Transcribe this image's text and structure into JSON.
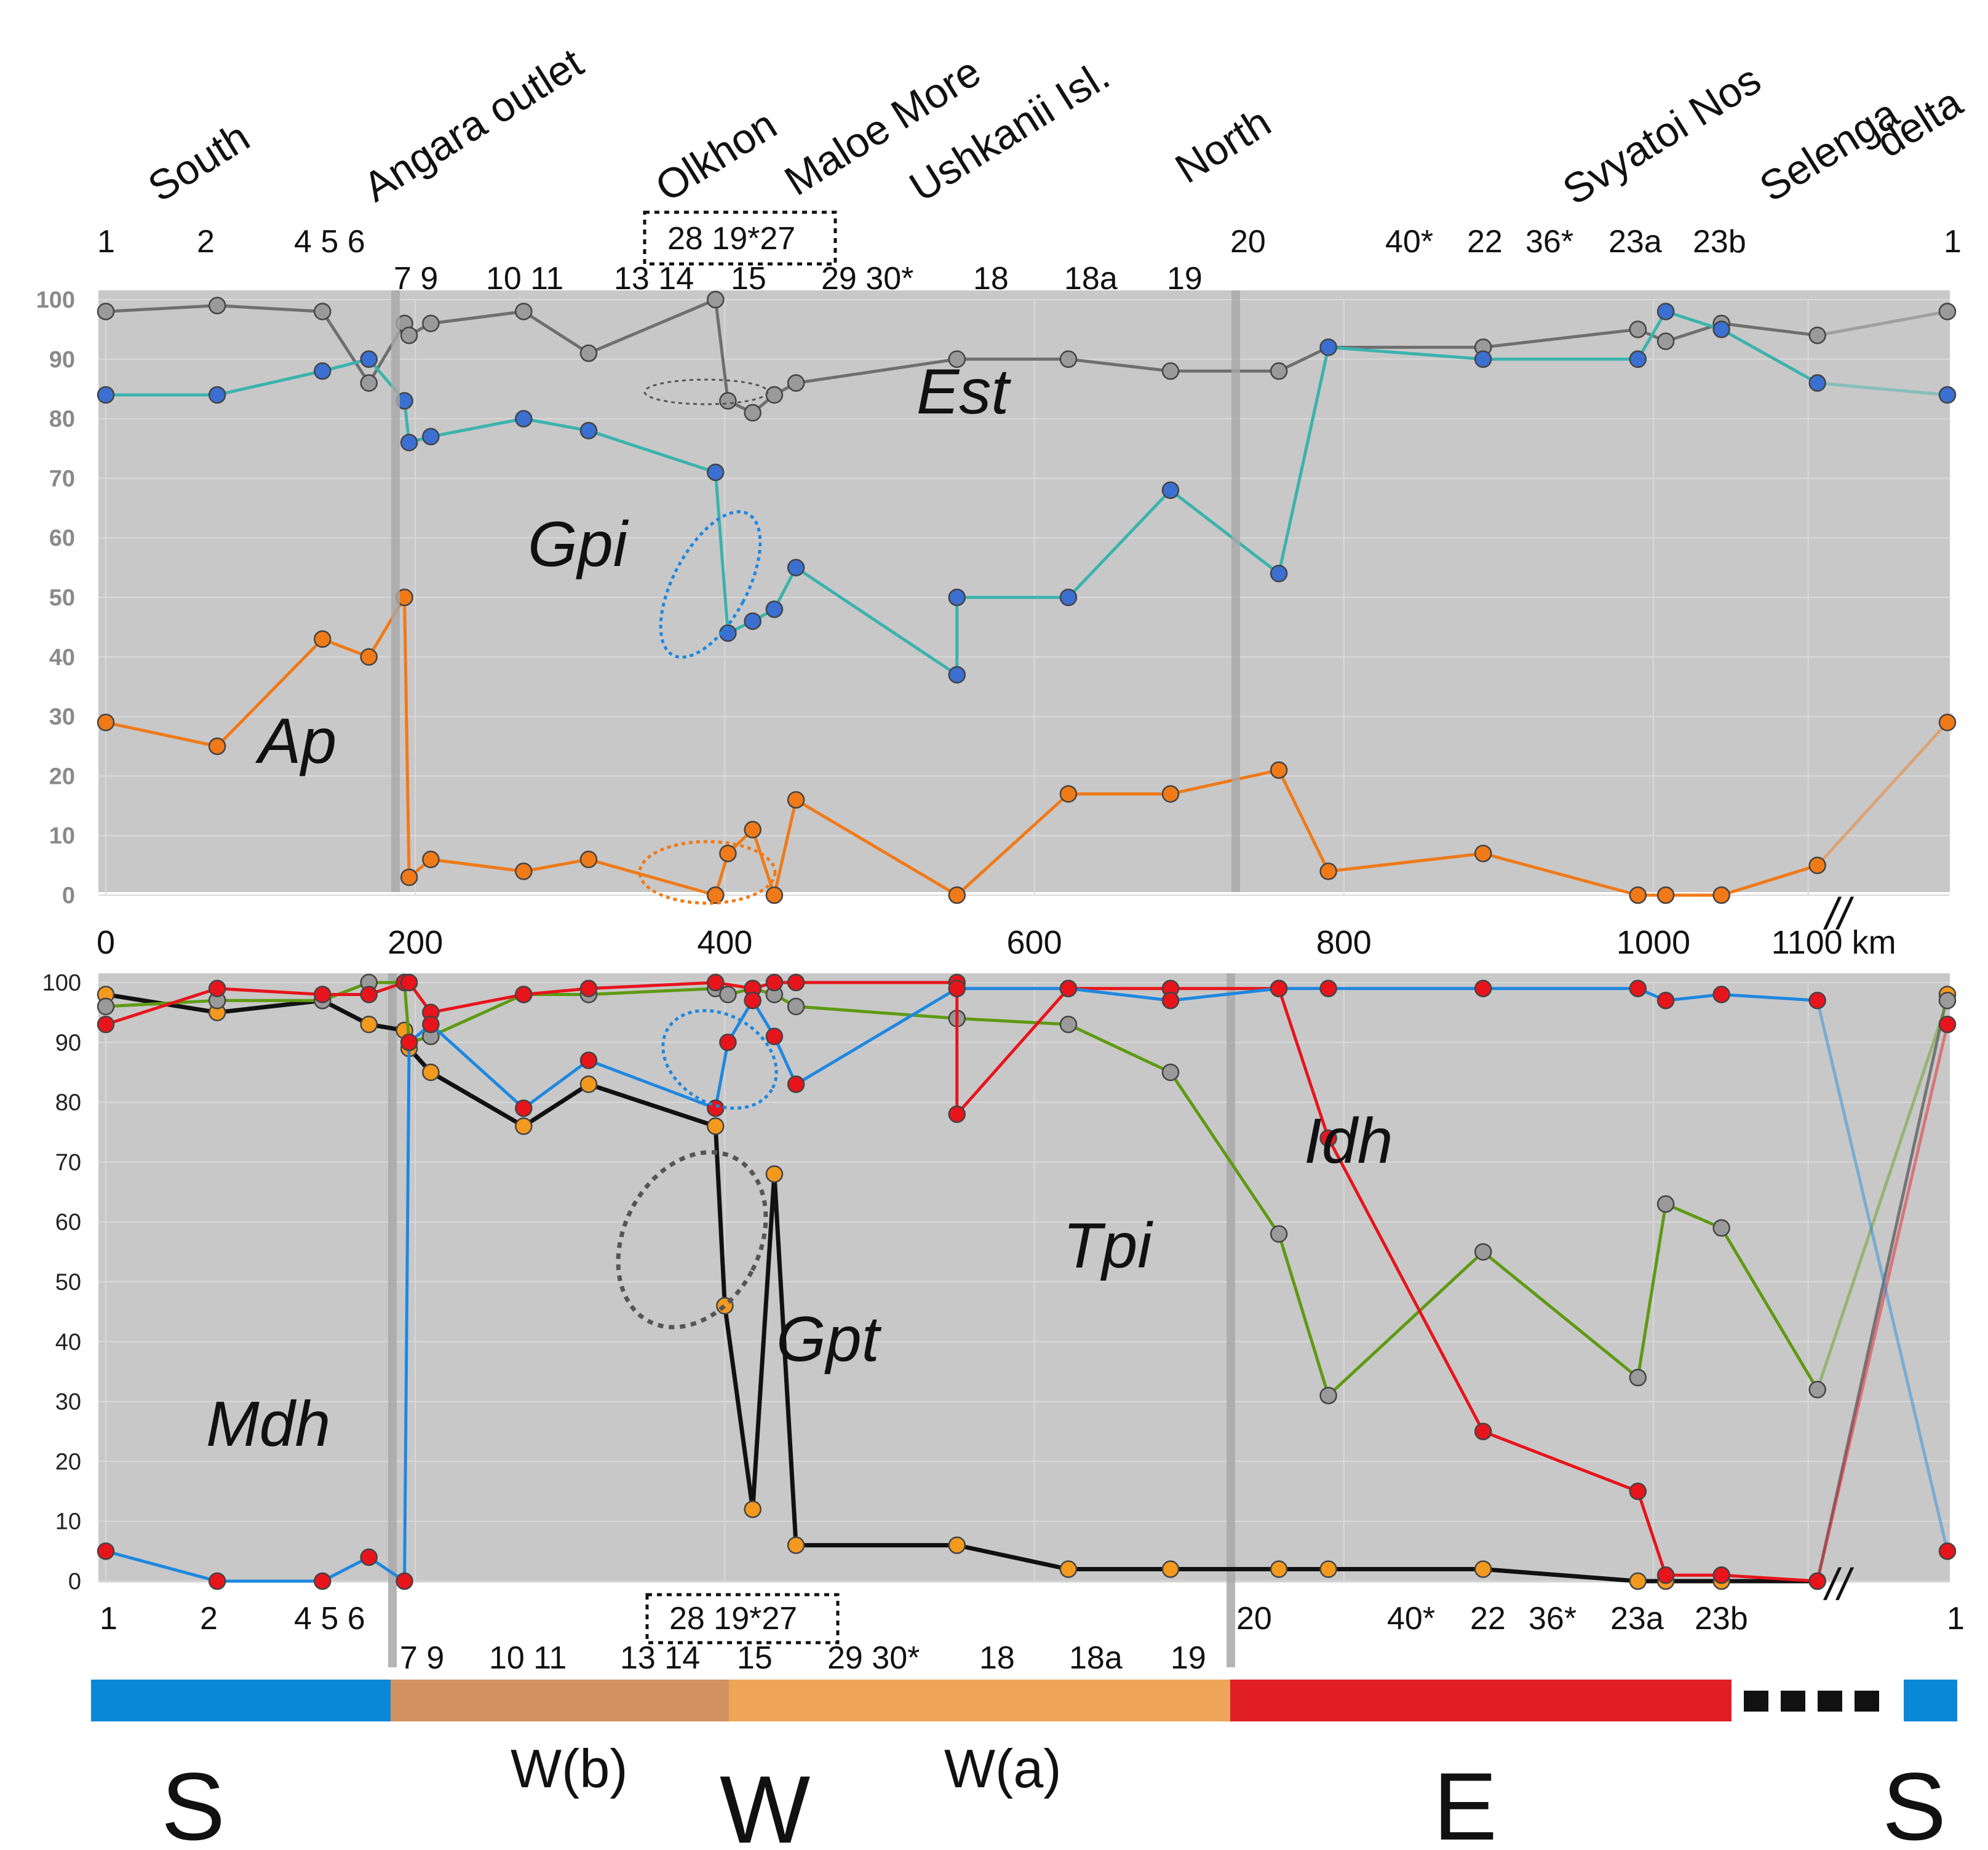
{
  "chart_data": [
    {
      "type": "line",
      "panel": "top",
      "xlim": [
        0,
        1190
      ],
      "ylim": [
        0,
        100
      ],
      "x_ticks": [
        "0",
        "200",
        "400",
        "600",
        "800",
        "1000",
        "1100 km"
      ],
      "y_ticks": [
        "0",
        "10",
        "20",
        "30",
        "40",
        "50",
        "60",
        "70",
        "80",
        "90",
        "100"
      ],
      "break_mark": "//",
      "series": [
        {
          "name": "Est",
          "color": "#6f6f6f",
          "marker": "#9a9a9a",
          "x": [
            0,
            72,
            140,
            170,
            193,
            196,
            210,
            270,
            312,
            394,
            402,
            418,
            432,
            446,
            550,
            622,
            688,
            758,
            790,
            890,
            990,
            1008,
            1044,
            1106,
            1190
          ],
          "y": [
            98,
            99,
            98,
            86,
            96,
            94,
            96,
            98,
            91,
            100,
            83,
            81,
            84,
            86,
            90,
            90,
            88,
            88,
            92,
            92,
            95,
            93,
            96,
            94,
            98
          ]
        },
        {
          "name": "Gpi",
          "color": "#3bb3ad",
          "marker": "#3b6fd1",
          "x": [
            0,
            72,
            140,
            170,
            193,
            196,
            210,
            270,
            312,
            394,
            402,
            418,
            432,
            446,
            550,
            550,
            622,
            688,
            758,
            790,
            890,
            990,
            1008,
            1044,
            1106,
            1190
          ],
          "y": [
            84,
            84,
            88,
            90,
            83,
            76,
            77,
            80,
            78,
            71,
            44,
            46,
            48,
            55,
            37,
            50,
            50,
            68,
            54,
            92,
            90,
            90,
            98,
            95,
            86,
            84
          ]
        },
        {
          "name": "Ap",
          "color": "#f07a18",
          "marker": "#f07a18",
          "x": [
            0,
            72,
            140,
            170,
            193,
            196,
            210,
            270,
            312,
            394,
            402,
            418,
            432,
            446,
            550,
            622,
            688,
            758,
            790,
            890,
            990,
            1008,
            1044,
            1106,
            1190
          ],
          "y": [
            29,
            25,
            43,
            40,
            50,
            3,
            6,
            4,
            6,
            0,
            7,
            11,
            0,
            16,
            0,
            17,
            17,
            21,
            4,
            7,
            0,
            0,
            0,
            5,
            29
          ]
        }
      ],
      "annotations": [
        "Est",
        "Gpi",
        "Ap"
      ]
    },
    {
      "type": "line",
      "panel": "bottom",
      "ylim": [
        0,
        100
      ],
      "y_ticks": [
        "0",
        "10",
        "20",
        "30",
        "40",
        "50",
        "60",
        "70",
        "80",
        "90",
        "100"
      ],
      "break_mark": "//",
      "series": [
        {
          "name": "Gpt",
          "color": "#111111",
          "marker": "#f39a1e",
          "x": [
            0,
            72,
            140,
            170,
            193,
            196,
            210,
            270,
            312,
            394,
            400,
            418,
            432,
            446,
            550,
            622,
            688,
            758,
            790,
            890,
            990,
            1008,
            1044,
            1106,
            1190
          ],
          "y": [
            98,
            95,
            97,
            93,
            92,
            89,
            85,
            76,
            83,
            76,
            46,
            12,
            68,
            6,
            6,
            2,
            2,
            2,
            2,
            2,
            0,
            0,
            0,
            0,
            98
          ]
        },
        {
          "name": "Tpi",
          "color": "#5e9a12",
          "marker": "#9a9a9a",
          "x": [
            0,
            72,
            140,
            170,
            193,
            196,
            210,
            270,
            312,
            394,
            402,
            418,
            432,
            446,
            550,
            622,
            688,
            758,
            790,
            890,
            990,
            1008,
            1044,
            1106,
            1190
          ],
          "y": [
            96,
            97,
            97,
            100,
            100,
            90,
            91,
            98,
            98,
            99,
            98,
            99,
            98,
            96,
            94,
            93,
            85,
            58,
            31,
            55,
            34,
            63,
            59,
            32,
            97
          ]
        },
        {
          "name": "Idh",
          "color": "#e8141c",
          "marker": "#e8141c",
          "x": [
            0,
            72,
            140,
            170,
            193,
            196,
            210,
            270,
            312,
            394,
            418,
            432,
            446,
            550,
            550,
            622,
            688,
            758,
            790,
            890,
            990,
            1008,
            1044,
            1106,
            1190
          ],
          "y": [
            93,
            99,
            98,
            98,
            100,
            100,
            95,
            98,
            99,
            100,
            99,
            100,
            100,
            100,
            78,
            99,
            99,
            99,
            74,
            25,
            15,
            1,
            1,
            0,
            93
          ]
        },
        {
          "name": "Mdh",
          "color": "#1e88e0",
          "marker": "#e8141c",
          "x": [
            0,
            72,
            140,
            170,
            193,
            196,
            210,
            270,
            312,
            394,
            402,
            418,
            432,
            446,
            550,
            622,
            688,
            758,
            790,
            890,
            990,
            1008,
            1044,
            1106,
            1190
          ],
          "y": [
            5,
            0,
            0,
            4,
            0,
            90,
            93,
            79,
            87,
            79,
            90,
            97,
            91,
            83,
            99,
            99,
            97,
            99,
            99,
            99,
            99,
            97,
            98,
            97,
            5
          ]
        }
      ],
      "annotations": [
        "Gpt",
        "Tpi",
        "Idh",
        "Mdh"
      ]
    }
  ],
  "locations": {
    "top_names": [
      "South",
      "Angara outlet",
      "Olkhon",
      "Maloe More",
      "Ushkanii Isl.",
      "North",
      "Svyatoi Nos",
      "Selenga",
      "delta"
    ],
    "top_numbers_row1": [
      "1",
      "2",
      "4 5 6",
      "20",
      "40*",
      "22",
      "36*",
      "23a",
      "23b",
      "1"
    ],
    "boxed_numbers": "28 19*27",
    "numbers_row2": [
      "7 9",
      "10 11",
      "13 14",
      "15",
      "29 30*",
      "18",
      "18a",
      "19"
    ],
    "bottom_numbers_row1": [
      "1",
      "2",
      "4 5 6",
      "20",
      "40*",
      "22",
      "36*",
      "23a",
      "23b",
      "1"
    ]
  },
  "regions": {
    "bar_colors": {
      "S": "#0a88d8",
      "Wb": "#d19161",
      "Wa": "#eea55a",
      "E": "#e01e24",
      "dots": "#111111"
    },
    "sub_labels": [
      "W(b)",
      "W(a)"
    ],
    "labels": [
      "S",
      "W",
      "E",
      "S"
    ]
  }
}
